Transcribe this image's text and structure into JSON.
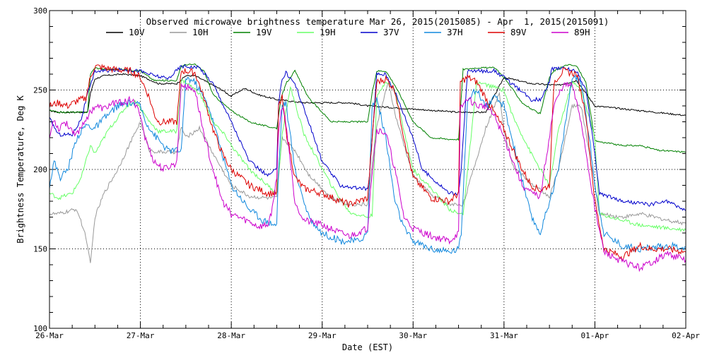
{
  "chart_data": {
    "type": "line",
    "title": "Observed microwave brightness temperature Mar 26, 2015(2015085) - Apr  1, 2015(2015091)",
    "xlabel": "Date (EST)",
    "ylabel": "Brightness Temperature, Deg K",
    "ylim": [
      100,
      300
    ],
    "xlim": [
      0,
      7
    ],
    "yticks": [
      100,
      150,
      200,
      250,
      300
    ],
    "y_minor_step": 10,
    "xticks": [
      0,
      1,
      2,
      3,
      4,
      5,
      6,
      7
    ],
    "x_minor_step": 0.25,
    "xtick_labels": [
      "26-Mar",
      "27-Mar",
      "28-Mar",
      "29-Mar",
      "30-Mar",
      "31-Mar",
      "01-Apr",
      "02-Apr"
    ],
    "grid": "dotted",
    "x_units": "days since 26-Mar 00:00 EST",
    "series": [
      {
        "name": "10V",
        "color": "#000000",
        "x": [
          0,
          0.1,
          0.3,
          0.42,
          0.45,
          0.5,
          0.6,
          0.8,
          1.0,
          1.2,
          1.4,
          1.5,
          1.6,
          1.9,
          2.0,
          2.05,
          2.15,
          2.3,
          2.5,
          2.8,
          3.0,
          3.3,
          3.5,
          4.0,
          4.5,
          4.8,
          5.0,
          5.3,
          5.6,
          5.8,
          6.0,
          6.5,
          7.0
        ],
        "y": [
          237,
          236,
          236,
          236,
          248,
          257,
          259,
          260,
          259,
          254,
          254,
          259,
          259,
          250,
          246,
          248,
          251,
          247,
          244,
          242,
          242,
          242,
          240,
          238,
          236,
          236,
          258,
          254,
          253,
          256,
          240,
          237,
          234
        ]
      },
      {
        "name": "10H",
        "color": "#999999",
        "x": [
          0,
          0.1,
          0.3,
          0.4,
          0.45,
          0.5,
          0.6,
          0.75,
          0.9,
          1.0,
          1.1,
          1.2,
          1.4,
          1.45,
          1.5,
          1.65,
          1.8,
          1.95,
          2.0,
          2.2,
          2.4,
          2.5,
          2.56,
          2.7,
          2.85,
          3.1,
          3.3,
          3.5,
          3.6,
          3.73,
          3.8,
          4.0,
          4.2,
          4.4,
          4.5,
          4.55,
          4.8,
          4.95,
          5.0,
          5.1,
          5.3,
          5.5,
          5.6,
          5.75,
          5.85,
          6.0,
          6.05,
          6.3,
          6.5,
          6.8,
          7.0
        ],
        "y": [
          172,
          172,
          175,
          158,
          140,
          170,
          185,
          200,
          218,
          230,
          212,
          211,
          211,
          227,
          220,
          226,
          210,
          195,
          190,
          183,
          182,
          182,
          220,
          212,
          197,
          182,
          178,
          178,
          228,
          255,
          235,
          196,
          184,
          178,
          178,
          178,
          226,
          248,
          225,
          202,
          191,
          183,
          200,
          240,
          240,
          190,
          172,
          170,
          172,
          168,
          166
        ]
      },
      {
        "name": "19V",
        "color": "#008000",
        "x": [
          0,
          0.1,
          0.3,
          0.42,
          0.45,
          0.5,
          0.6,
          0.8,
          1.0,
          1.15,
          1.3,
          1.4,
          1.45,
          1.5,
          1.6,
          1.7,
          1.8,
          1.9,
          2.0,
          2.2,
          2.4,
          2.5,
          2.55,
          2.6,
          2.7,
          2.85,
          3.1,
          3.5,
          3.55,
          3.6,
          3.7,
          3.8,
          3.9,
          4.0,
          4.1,
          4.2,
          4.4,
          4.5,
          4.55,
          4.7,
          4.9,
          5.0,
          5.2,
          5.3,
          5.4,
          5.5,
          5.55,
          5.7,
          5.8,
          5.9,
          6.0,
          6.3,
          6.5,
          6.7,
          7.0
        ],
        "y": [
          237,
          236,
          236,
          236,
          260,
          264,
          263,
          263,
          262,
          256,
          256,
          256,
          265,
          266,
          266,
          262,
          247,
          242,
          237,
          230,
          227,
          226,
          245,
          254,
          262,
          245,
          230,
          230,
          248,
          262,
          262,
          253,
          242,
          230,
          225,
          220,
          219,
          219,
          263,
          264,
          264,
          258,
          242,
          238,
          235,
          258,
          262,
          266,
          265,
          255,
          218,
          215,
          215,
          212,
          211
        ]
      },
      {
        "name": "19H",
        "color": "#66ff66",
        "x": [
          0,
          0.1,
          0.25,
          0.35,
          0.45,
          0.5,
          0.65,
          0.85,
          0.95,
          1.1,
          1.2,
          1.4,
          1.45,
          1.5,
          1.65,
          1.8,
          1.95,
          2.0,
          2.2,
          2.4,
          2.5,
          2.56,
          2.65,
          2.8,
          3.1,
          3.3,
          3.5,
          3.55,
          3.6,
          3.7,
          3.8,
          3.9,
          4.0,
          4.2,
          4.4,
          4.5,
          4.55,
          4.7,
          5.0,
          5.1,
          5.3,
          5.4,
          5.5,
          5.6,
          5.75,
          5.85,
          6.0,
          6.05,
          6.3,
          6.5,
          6.8,
          7.0
        ],
        "y": [
          185,
          182,
          185,
          195,
          215,
          210,
          225,
          240,
          243,
          230,
          224,
          224,
          256,
          255,
          248,
          230,
          220,
          215,
          200,
          190,
          185,
          222,
          252,
          222,
          190,
          173,
          170,
          171,
          245,
          256,
          250,
          224,
          200,
          188,
          175,
          172,
          172,
          255,
          250,
          233,
          210,
          200,
          190,
          225,
          255,
          250,
          220,
          172,
          168,
          165,
          163,
          162
        ]
      },
      {
        "name": "37V",
        "color": "#0000cc",
        "x": [
          0,
          0.1,
          0.25,
          0.35,
          0.42,
          0.45,
          0.5,
          0.6,
          0.8,
          1.0,
          1.1,
          1.3,
          1.45,
          1.5,
          1.65,
          1.8,
          2.0,
          2.2,
          2.4,
          2.5,
          2.52,
          2.55,
          2.6,
          2.7,
          2.85,
          3.0,
          3.2,
          3.4,
          3.5,
          3.52,
          3.6,
          3.7,
          3.8,
          4.0,
          4.1,
          4.4,
          4.5,
          4.53,
          4.6,
          4.7,
          4.9,
          5.0,
          5.3,
          5.4,
          5.5,
          5.52,
          5.6,
          5.8,
          5.9,
          6.0,
          6.05,
          6.3,
          6.6,
          6.8,
          7.0
        ],
        "y": [
          232,
          222,
          222,
          232,
          248,
          252,
          262,
          262,
          263,
          262,
          260,
          257,
          265,
          265,
          264,
          254,
          230,
          205,
          196,
          200,
          242,
          255,
          261,
          254,
          230,
          205,
          190,
          188,
          188,
          195,
          260,
          260,
          249,
          220,
          200,
          185,
          185,
          200,
          262,
          262,
          262,
          258,
          244,
          244,
          255,
          263,
          264,
          262,
          250,
          210,
          185,
          180,
          178,
          180,
          174
        ]
      },
      {
        "name": "37H",
        "color": "#1188dd",
        "x": [
          0,
          0.05,
          0.12,
          0.2,
          0.3,
          0.4,
          0.5,
          0.6,
          0.75,
          0.9,
          1.0,
          1.05,
          1.15,
          1.3,
          1.45,
          1.5,
          1.6,
          1.75,
          1.9,
          2.0,
          2.2,
          2.35,
          2.5,
          2.52,
          2.56,
          2.6,
          2.7,
          2.85,
          3.0,
          3.2,
          3.4,
          3.5,
          3.55,
          3.6,
          3.7,
          3.8,
          3.9,
          4.0,
          4.2,
          4.4,
          4.5,
          4.53,
          4.6,
          4.7,
          4.8,
          4.9,
          5.0,
          5.15,
          5.3,
          5.4,
          5.6,
          5.75,
          5.85,
          5.95,
          6.0,
          6.1,
          6.3,
          6.5,
          6.8,
          7.0
        ],
        "y": [
          190,
          205,
          195,
          200,
          220,
          228,
          226,
          232,
          240,
          242,
          240,
          231,
          222,
          212,
          212,
          258,
          255,
          240,
          210,
          190,
          175,
          168,
          165,
          200,
          240,
          242,
          200,
          170,
          160,
          155,
          155,
          160,
          240,
          245,
          220,
          180,
          163,
          155,
          150,
          148,
          150,
          160,
          245,
          250,
          240,
          245,
          240,
          205,
          170,
          160,
          200,
          258,
          255,
          215,
          190,
          160,
          152,
          150,
          152,
          151
        ]
      },
      {
        "name": "89V",
        "color": "#dd0000",
        "x": [
          0,
          0.1,
          0.2,
          0.3,
          0.4,
          0.42,
          0.45,
          0.5,
          0.7,
          0.9,
          1.0,
          1.1,
          1.15,
          1.2,
          1.4,
          1.45,
          1.5,
          1.6,
          1.7,
          1.8,
          1.9,
          2.0,
          2.2,
          2.4,
          2.5,
          2.52,
          2.56,
          2.6,
          2.7,
          2.8,
          3.0,
          3.2,
          3.3,
          3.5,
          3.53,
          3.6,
          3.7,
          3.8,
          3.9,
          4.0,
          4.2,
          4.4,
          4.5,
          4.52,
          4.6,
          4.7,
          4.8,
          4.9,
          5.0,
          5.2,
          5.3,
          5.4,
          5.5,
          5.55,
          5.65,
          5.8,
          5.9,
          6.0,
          6.1,
          6.3,
          6.5,
          6.6,
          6.8,
          7.0
        ],
        "y": [
          240,
          242,
          240,
          243,
          245,
          250,
          258,
          265,
          263,
          262,
          258,
          245,
          235,
          230,
          230,
          262,
          262,
          261,
          245,
          225,
          210,
          200,
          190,
          185,
          185,
          240,
          245,
          225,
          195,
          188,
          185,
          180,
          178,
          182,
          205,
          255,
          257,
          250,
          220,
          195,
          182,
          180,
          185,
          255,
          258,
          255,
          245,
          235,
          225,
          200,
          190,
          187,
          190,
          255,
          262,
          260,
          235,
          180,
          150,
          145,
          152,
          150,
          150,
          148
        ]
      },
      {
        "name": "89H",
        "color": "#cc00cc",
        "x": [
          0,
          0.05,
          0.1,
          0.15,
          0.2,
          0.3,
          0.4,
          0.5,
          0.6,
          0.7,
          0.8,
          0.9,
          1.0,
          1.05,
          1.15,
          1.25,
          1.4,
          1.45,
          1.5,
          1.6,
          1.7,
          1.8,
          1.9,
          2.0,
          2.2,
          2.3,
          2.4,
          2.45,
          2.5,
          2.52,
          2.56,
          2.6,
          2.7,
          2.8,
          3.0,
          3.2,
          3.3,
          3.5,
          3.53,
          3.6,
          3.7,
          3.8,
          3.9,
          4.0,
          4.2,
          4.4,
          4.5,
          4.52,
          4.6,
          4.7,
          4.8,
          4.9,
          5.0,
          5.2,
          5.3,
          5.4,
          5.55,
          5.65,
          5.75,
          5.85,
          6.0,
          6.1,
          6.3,
          6.5,
          6.8,
          7.0
        ],
        "y": [
          220,
          232,
          225,
          230,
          228,
          222,
          232,
          240,
          238,
          242,
          242,
          244,
          235,
          220,
          205,
          200,
          204,
          255,
          252,
          250,
          222,
          200,
          180,
          172,
          167,
          164,
          165,
          175,
          195,
          225,
          240,
          230,
          180,
          168,
          165,
          160,
          158,
          163,
          188,
          225,
          223,
          200,
          170,
          163,
          158,
          155,
          160,
          238,
          245,
          240,
          240,
          233,
          220,
          190,
          185,
          183,
          240,
          253,
          253,
          230,
          175,
          148,
          142,
          138,
          147,
          143
        ]
      }
    ]
  }
}
